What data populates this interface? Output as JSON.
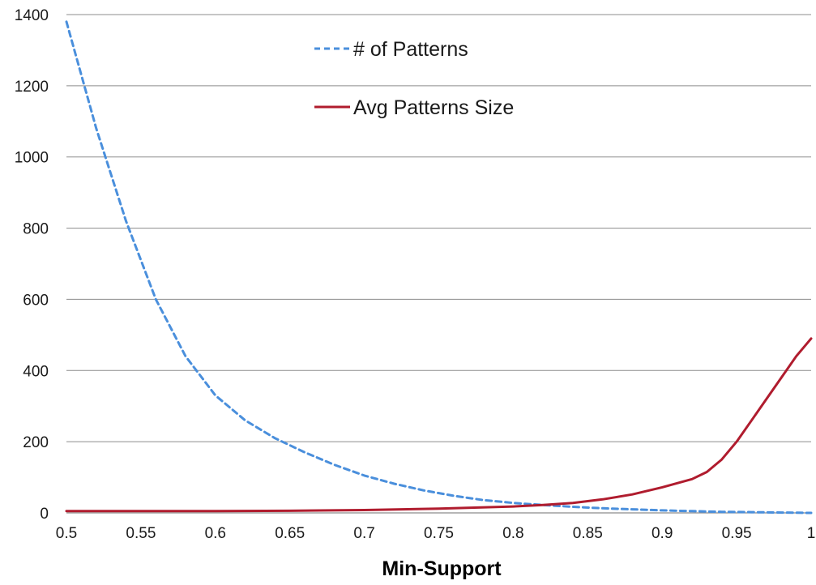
{
  "chart_data": {
    "type": "line",
    "xlabel": "Min-Support",
    "ylabel": "",
    "xlim": [
      0.5,
      1
    ],
    "ylim": [
      0,
      1400
    ],
    "x_ticks": [
      "0.5",
      "0.55",
      "0.6",
      "0.65",
      "0.7",
      "0.75",
      "0.8",
      "0.85",
      "0.9",
      "0.95",
      "1"
    ],
    "y_ticks": [
      "0",
      "200",
      "400",
      "600",
      "800",
      "1000",
      "1200",
      "1400"
    ],
    "grid": "horizontal",
    "legend_position": "top-center",
    "series": [
      {
        "name": "# of Patterns",
        "style": "dashed",
        "color": "#4a8fdc",
        "points": [
          [
            0.5,
            1380
          ],
          [
            0.52,
            1080
          ],
          [
            0.54,
            820
          ],
          [
            0.56,
            600
          ],
          [
            0.58,
            440
          ],
          [
            0.6,
            330
          ],
          [
            0.62,
            260
          ],
          [
            0.64,
            210
          ],
          [
            0.66,
            170
          ],
          [
            0.68,
            135
          ],
          [
            0.7,
            105
          ],
          [
            0.72,
            82
          ],
          [
            0.74,
            63
          ],
          [
            0.76,
            48
          ],
          [
            0.78,
            36
          ],
          [
            0.8,
            28
          ],
          [
            0.82,
            22
          ],
          [
            0.84,
            17
          ],
          [
            0.86,
            13
          ],
          [
            0.88,
            10
          ],
          [
            0.9,
            7
          ],
          [
            0.92,
            5
          ],
          [
            0.94,
            3
          ],
          [
            0.96,
            2
          ],
          [
            0.98,
            1
          ],
          [
            1.0,
            0
          ]
        ]
      },
      {
        "name": "Avg Patterns Size",
        "style": "solid",
        "color": "#b01c2e",
        "points": [
          [
            0.5,
            5
          ],
          [
            0.55,
            5
          ],
          [
            0.6,
            5
          ],
          [
            0.65,
            6
          ],
          [
            0.7,
            8
          ],
          [
            0.75,
            12
          ],
          [
            0.8,
            18
          ],
          [
            0.82,
            22
          ],
          [
            0.84,
            28
          ],
          [
            0.86,
            38
          ],
          [
            0.88,
            52
          ],
          [
            0.9,
            72
          ],
          [
            0.92,
            95
          ],
          [
            0.93,
            115
          ],
          [
            0.94,
            150
          ],
          [
            0.95,
            200
          ],
          [
            0.96,
            260
          ],
          [
            0.97,
            320
          ],
          [
            0.98,
            380
          ],
          [
            0.99,
            440
          ],
          [
            1.0,
            490
          ]
        ]
      }
    ]
  }
}
